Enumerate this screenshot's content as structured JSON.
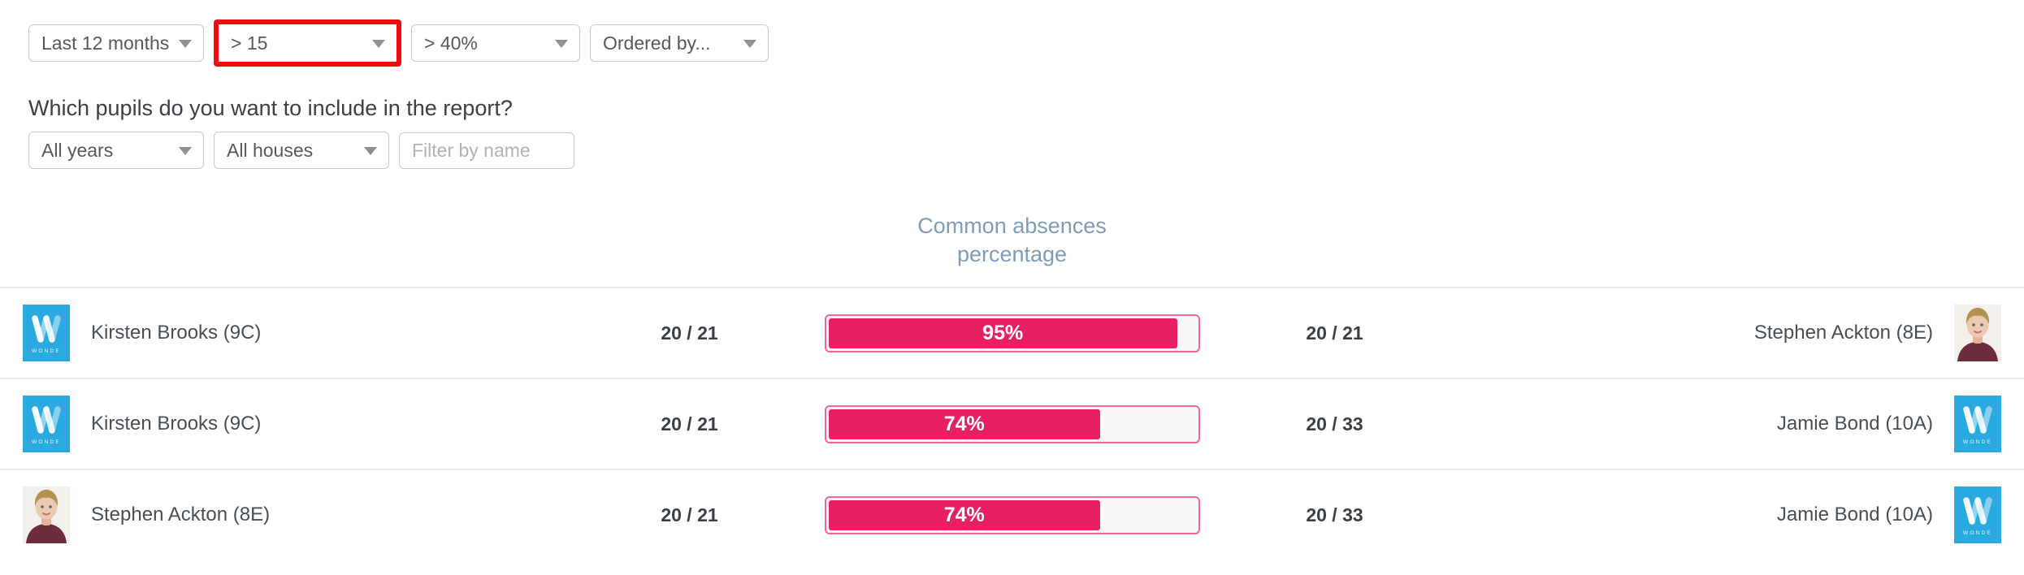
{
  "filters_top": {
    "period": {
      "value": "Last 12 months"
    },
    "sessions": {
      "value": "> 15",
      "highlighted": true
    },
    "percentage": {
      "value": "> 40%"
    },
    "ordered_by": {
      "value": "Ordered by..."
    }
  },
  "question": "Which pupils do you want to include in the report?",
  "filters_pupils": {
    "years": "All years",
    "houses": "All houses",
    "name_placeholder": "Filter by name"
  },
  "table": {
    "column_heading": "Common absences percentage",
    "rows": [
      {
        "left": {
          "name": "Kirsten Brooks (9C)",
          "avatar": "wonde-logo"
        },
        "left_value": "20 / 21",
        "percent": 95,
        "percent_label": "95%",
        "right_value": "20 / 21",
        "right": {
          "name": "Stephen Ackton (8E)",
          "avatar": "pupil-photo"
        }
      },
      {
        "left": {
          "name": "Kirsten Brooks (9C)",
          "avatar": "wonde-logo"
        },
        "left_value": "20 / 21",
        "percent": 74,
        "percent_label": "74%",
        "right_value": "20 / 33",
        "right": {
          "name": "Jamie Bond (10A)",
          "avatar": "wonde-logo"
        }
      },
      {
        "left": {
          "name": "Stephen Ackton (8E)",
          "avatar": "pupil-photo"
        },
        "left_value": "20 / 21",
        "percent": 74,
        "percent_label": "74%",
        "right_value": "20 / 33",
        "right": {
          "name": "Jamie Bond (10A)",
          "avatar": "wonde-logo"
        }
      }
    ]
  },
  "colors": {
    "accent_pink": "#E81F63",
    "bar_border": "#F0679C",
    "bar_track_bg": "#F8F8F9",
    "heading_blue_gray": "#7F9CB7",
    "highlight_red": "#F20D0D",
    "wonde_blue": "#2BA9E1",
    "separator_gray": "#E9ECEF"
  }
}
